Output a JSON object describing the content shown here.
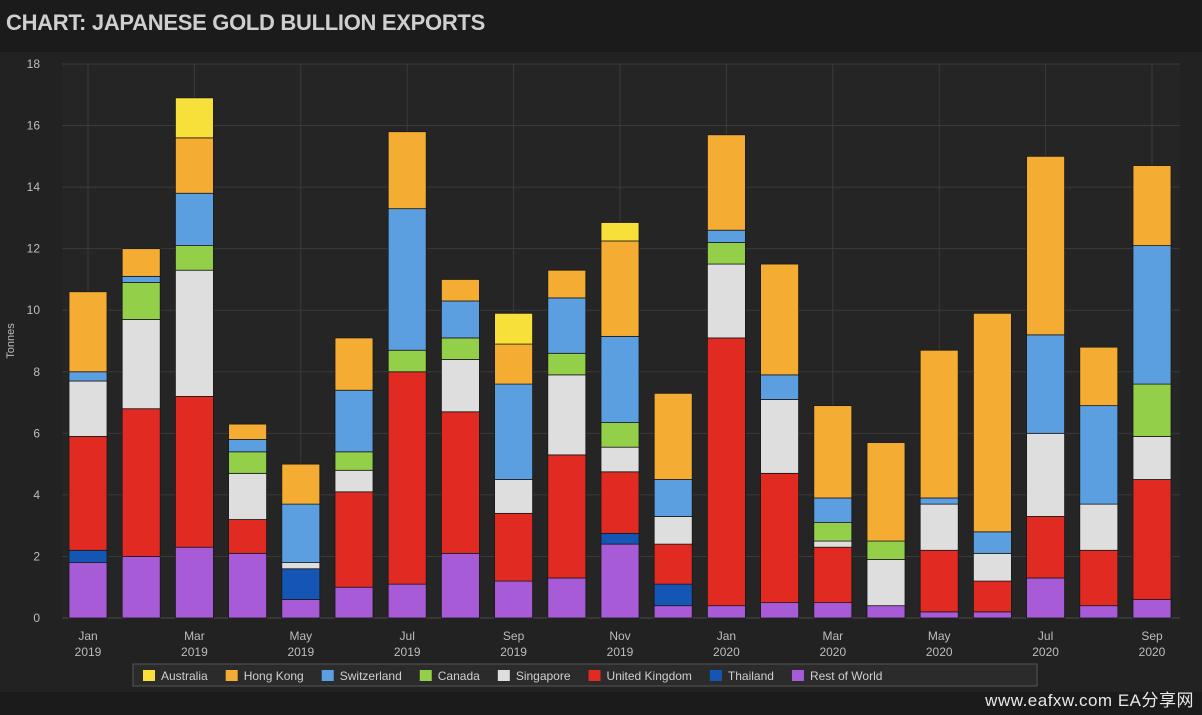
{
  "title": "CHART: JAPANESE GOLD BULLION EXPORTS",
  "watermark": "www.eafxw.com   EA分享网",
  "chart_data": {
    "type": "bar",
    "stacked": true,
    "ylabel": "Tonnes",
    "ylim": [
      0,
      18
    ],
    "yticks": [
      0,
      2,
      4,
      6,
      8,
      10,
      12,
      14,
      16,
      18
    ],
    "grid": true,
    "legend_position": "bottom",
    "categories": [
      "Jan 2019",
      "Feb 2019",
      "Mar 2019",
      "Apr 2019",
      "May 2019",
      "Jun 2019",
      "Jul 2019",
      "Aug 2019",
      "Sep 2019",
      "Oct 2019",
      "Nov 2019",
      "Dec 2019",
      "Jan 2020",
      "Feb 2020",
      "Mar 2020",
      "Apr 2020",
      "May 2020",
      "Jun 2020",
      "Jul 2020",
      "Aug 2020",
      "Sep 2020"
    ],
    "xtick_labels": [
      {
        "index": 0,
        "line1": "Jan",
        "line2": "2019"
      },
      {
        "index": 2,
        "line1": "Mar",
        "line2": "2019"
      },
      {
        "index": 4,
        "line1": "May",
        "line2": "2019"
      },
      {
        "index": 6,
        "line1": "Jul",
        "line2": "2019"
      },
      {
        "index": 8,
        "line1": "Sep",
        "line2": "2019"
      },
      {
        "index": 10,
        "line1": "Nov",
        "line2": "2019"
      },
      {
        "index": 12,
        "line1": "Jan",
        "line2": "2020"
      },
      {
        "index": 14,
        "line1": "Mar",
        "line2": "2020"
      },
      {
        "index": 16,
        "line1": "May",
        "line2": "2020"
      },
      {
        "index": 18,
        "line1": "Jul",
        "line2": "2020"
      },
      {
        "index": 20,
        "line1": "Sep",
        "line2": "2020"
      }
    ],
    "series": [
      {
        "name": "Rest of World",
        "color": "#a75bd6",
        "values": [
          1.8,
          2.0,
          2.3,
          2.1,
          0.6,
          1.0,
          1.1,
          2.1,
          1.2,
          1.3,
          2.4,
          0.4,
          0.4,
          0.5,
          0.5,
          0.4,
          0.2,
          0.2,
          1.3,
          0.4,
          0.6
        ]
      },
      {
        "name": "Thailand",
        "color": "#1555b3",
        "values": [
          0.4,
          0,
          0,
          0,
          1.0,
          0,
          0,
          0,
          0,
          0,
          0.35,
          0.7,
          0,
          0,
          0,
          0,
          0,
          0,
          0,
          0,
          0
        ]
      },
      {
        "name": "United Kingdom",
        "color": "#e12a22",
        "values": [
          3.7,
          4.8,
          4.9,
          1.1,
          0,
          3.1,
          6.9,
          4.6,
          2.2,
          4.0,
          2.0,
          1.3,
          8.7,
          4.2,
          1.8,
          0,
          2.0,
          1.0,
          2.0,
          1.8,
          3.9
        ]
      },
      {
        "name": "Singapore",
        "color": "#dedede",
        "values": [
          1.8,
          2.9,
          4.1,
          1.5,
          0.2,
          0.7,
          0,
          1.7,
          1.1,
          2.6,
          0.8,
          0.9,
          2.4,
          2.4,
          0.2,
          1.5,
          1.5,
          0.9,
          2.7,
          1.5,
          1.4
        ]
      },
      {
        "name": "Canada",
        "color": "#94cf4a",
        "values": [
          0,
          1.2,
          0.8,
          0.7,
          0,
          0.6,
          0.7,
          0.7,
          0,
          0.7,
          0.8,
          0,
          0.7,
          0,
          0.6,
          0.6,
          0,
          0,
          0,
          0,
          1.7
        ]
      },
      {
        "name": "Switzerland",
        "color": "#5b9fe0",
        "values": [
          0.3,
          0.2,
          1.7,
          0.4,
          1.9,
          2.0,
          4.6,
          1.2,
          3.1,
          1.8,
          2.8,
          1.2,
          0.4,
          0.8,
          0.8,
          0,
          0.2,
          0.7,
          3.2,
          3.2,
          4.5
        ]
      },
      {
        "name": "Hong Kong",
        "color": "#f4ad32",
        "values": [
          2.6,
          0.9,
          1.8,
          0.5,
          1.3,
          1.7,
          2.5,
          0.7,
          1.3,
          0.9,
          3.1,
          2.8,
          3.1,
          3.6,
          3.0,
          3.2,
          4.8,
          7.1,
          5.8,
          1.9,
          2.6
        ]
      },
      {
        "name": "Australia",
        "color": "#f8e03a",
        "values": [
          0,
          0,
          1.3,
          0,
          0,
          0,
          0,
          0,
          1.0,
          0,
          0.6,
          0,
          0,
          0,
          0,
          0,
          0,
          0,
          0,
          0,
          0
        ]
      }
    ],
    "legend_order": [
      "Australia",
      "Hong Kong",
      "Switzerland",
      "Canada",
      "Singapore",
      "United Kingdom",
      "Thailand",
      "Rest of World"
    ]
  }
}
